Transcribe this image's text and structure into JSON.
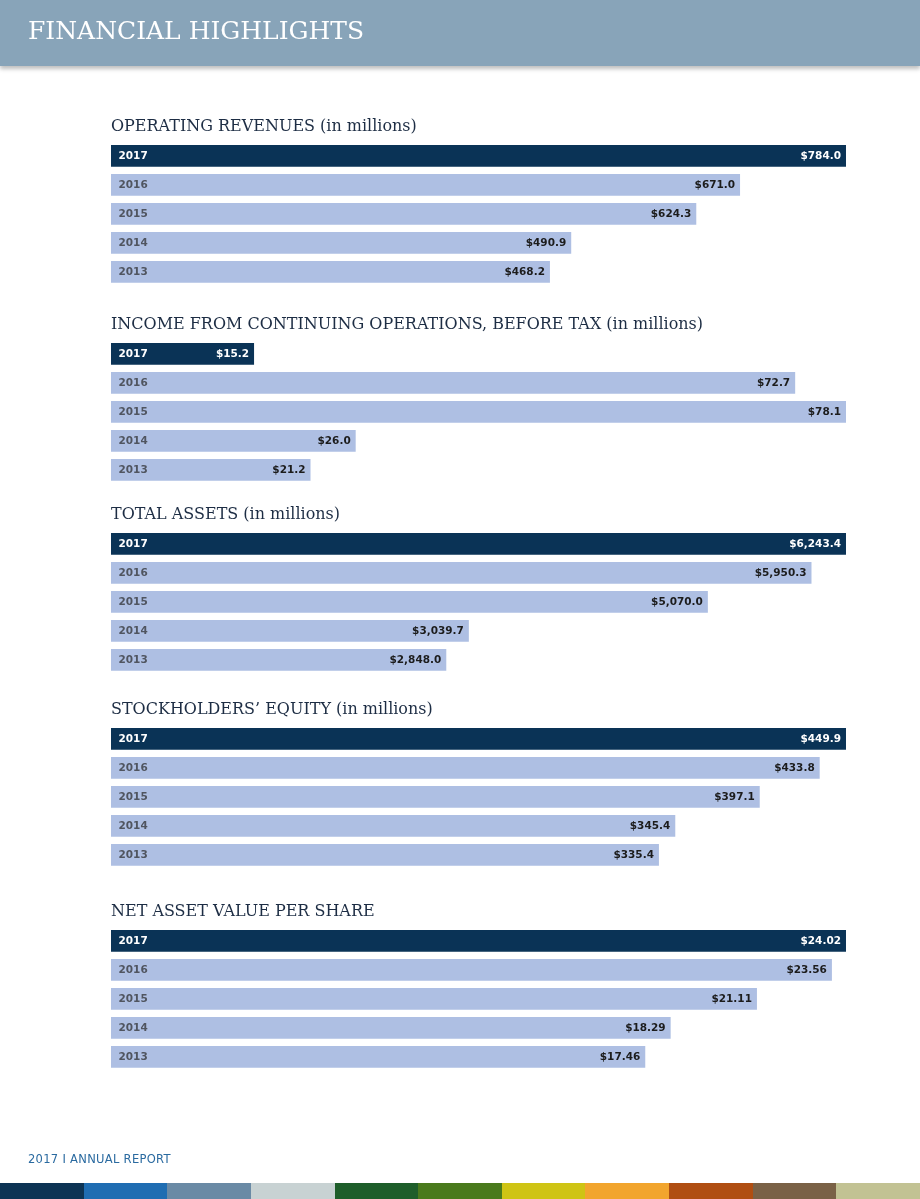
{
  "chart_data": [
    {
      "type": "other",
      "title": "FINANCIAL HIGHLIGHTS"
    },
    {
      "type": "bar",
      "orientation": "horizontal",
      "title": "OPERATING REVENUES (in millions)",
      "categories": [
        "2017",
        "2016",
        "2015",
        "2014",
        "2013"
      ],
      "values": [
        784.0,
        671.0,
        624.3,
        490.9,
        468.2
      ],
      "value_labels": [
        "$784.0",
        "$671.0",
        "$624.3",
        "$490.9",
        "$468.2"
      ],
      "colors": [
        "#0a3356",
        "#aebfe3",
        "#aebfe3",
        "#aebfe3",
        "#aebfe3"
      ]
    },
    {
      "type": "bar",
      "orientation": "horizontal",
      "title": "INCOME FROM CONTINUING OPERATIONS, BEFORE TAX (in millions)",
      "categories": [
        "2017",
        "2016",
        "2015",
        "2014",
        "2013"
      ],
      "values": [
        15.2,
        72.7,
        78.1,
        26.0,
        21.2
      ],
      "value_labels": [
        "$15.2",
        "$72.7",
        "$78.1",
        "$26.0",
        "$21.2"
      ],
      "colors": [
        "#0a3356",
        "#aebfe3",
        "#aebfe3",
        "#aebfe3",
        "#aebfe3"
      ]
    },
    {
      "type": "bar",
      "orientation": "horizontal",
      "title": "TOTAL ASSETS (in millions)",
      "categories": [
        "2017",
        "2016",
        "2015",
        "2014",
        "2013"
      ],
      "values": [
        6243.4,
        5950.3,
        5070.0,
        3039.7,
        2848.0
      ],
      "value_labels": [
        "$6,243.4",
        "$5,950.3",
        "$5,070.0",
        "$3,039.7",
        "$2,848.0"
      ],
      "colors": [
        "#0a3356",
        "#aebfe3",
        "#aebfe3",
        "#aebfe3",
        "#aebfe3"
      ]
    },
    {
      "type": "bar",
      "orientation": "horizontal",
      "title": "STOCKHOLDERS’ EQUITY (in millions)",
      "categories": [
        "2017",
        "2016",
        "2015",
        "2014",
        "2013"
      ],
      "values": [
        449.9,
        433.8,
        397.1,
        345.4,
        335.4
      ],
      "value_labels": [
        "$449.9",
        "$433.8",
        "$397.1",
        "$345.4",
        "$335.4"
      ],
      "colors": [
        "#0a3356",
        "#aebfe3",
        "#aebfe3",
        "#aebfe3",
        "#aebfe3"
      ]
    },
    {
      "type": "bar",
      "orientation": "horizontal",
      "title": "NET ASSET VALUE PER SHARE",
      "categories": [
        "2017",
        "2016",
        "2015",
        "2014",
        "2013"
      ],
      "values": [
        24.02,
        23.56,
        21.11,
        18.29,
        17.46
      ],
      "value_labels": [
        "$24.02",
        "$23.56",
        "$21.11",
        "$18.29",
        "$17.46"
      ],
      "colors": [
        "#0a3356",
        "#aebfe3",
        "#aebfe3",
        "#aebfe3",
        "#aebfe3"
      ]
    },
    {
      "type": "other",
      "annotations": [
        "2017 I ANNUAL REPORT"
      ]
    }
  ]
}
